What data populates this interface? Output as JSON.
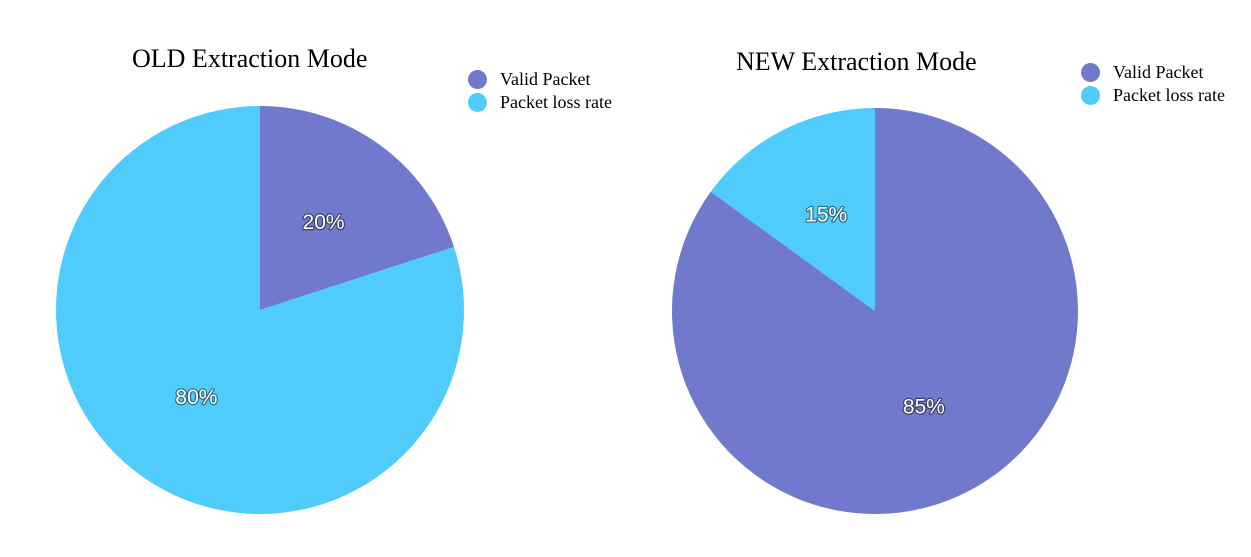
{
  "colors": {
    "valid_packet": "#7079CB",
    "packet_loss_rate": "#50CCFC"
  },
  "chart_data": [
    {
      "type": "pie",
      "title": "OLD Extraction Mode",
      "legend_position": "top-right",
      "slices": [
        {
          "label": "Valid Packet",
          "value": 20,
          "display": "20%",
          "color": "#7079CB"
        },
        {
          "label": "Packet loss rate",
          "value": 80,
          "display": "80%",
          "color": "#50CCFC"
        }
      ]
    },
    {
      "type": "pie",
      "title": "NEW Extraction Mode",
      "legend_position": "top-right",
      "slices": [
        {
          "label": "Valid Packet",
          "value": 85,
          "display": "85%",
          "color": "#7079CB"
        },
        {
          "label": "Packet loss rate",
          "value": 15,
          "display": "15%",
          "color": "#50CCFC"
        }
      ]
    }
  ]
}
